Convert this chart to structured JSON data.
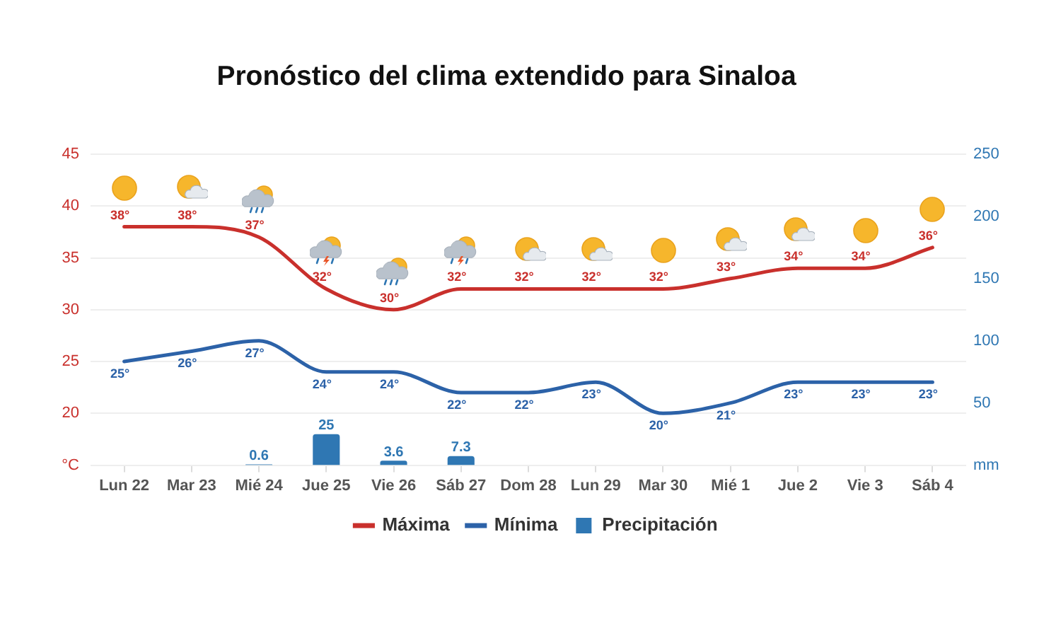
{
  "chart_data": {
    "type": "line",
    "title": "Pronóstico del clima extendido para Sinaloa",
    "categories": [
      "Lun 22",
      "Mar 23",
      "Mié 24",
      "Jue 25",
      "Vie 26",
      "Sáb 27",
      "Dom 28",
      "Lun 29",
      "Mar 30",
      "Mié 1",
      "Jue 2",
      "Vie 3",
      "Sáb 4"
    ],
    "series": [
      {
        "name": "Máxima",
        "color": "#c9302c",
        "values": [
          38,
          38,
          37,
          32,
          30,
          32,
          32,
          32,
          32,
          33,
          34,
          34,
          36
        ],
        "value_labels": [
          "38°",
          "38°",
          "37°",
          "32°",
          "30°",
          "32°",
          "32°",
          "32°",
          "32°",
          "33°",
          "34°",
          "34°",
          "36°"
        ]
      },
      {
        "name": "Mínima",
        "color": "#2c62a8",
        "values": [
          25,
          26,
          27,
          24,
          24,
          22,
          22,
          23,
          20,
          21,
          23,
          23,
          23
        ],
        "value_labels": [
          "25°",
          "26°",
          "27°",
          "24°",
          "24°",
          "22°",
          "22°",
          "23°",
          "20°",
          "21°",
          "23°",
          "23°",
          "23°"
        ]
      },
      {
        "name": "Precipitación",
        "type": "bar",
        "axis": "y2",
        "color": "#2f77b3",
        "values": [
          null,
          null,
          0.6,
          25,
          3.6,
          7.3,
          null,
          null,
          null,
          null,
          null,
          null,
          null
        ],
        "value_labels": [
          null,
          null,
          "0.6",
          "25",
          "3.6",
          "7.3",
          null,
          null,
          null,
          null,
          null,
          null,
          null
        ]
      }
    ],
    "ylim": [
      15,
      45
    ],
    "yticks": [
      {
        "value": 15,
        "label": "°C"
      },
      20,
      25,
      30,
      35,
      40,
      45
    ],
    "y2lim": [
      0,
      250
    ],
    "y2ticks": [
      {
        "value": 0,
        "label": "mm"
      },
      50,
      100,
      150,
      200,
      250
    ],
    "grid": "y",
    "legend": "bottom",
    "marker": "none"
  }
}
